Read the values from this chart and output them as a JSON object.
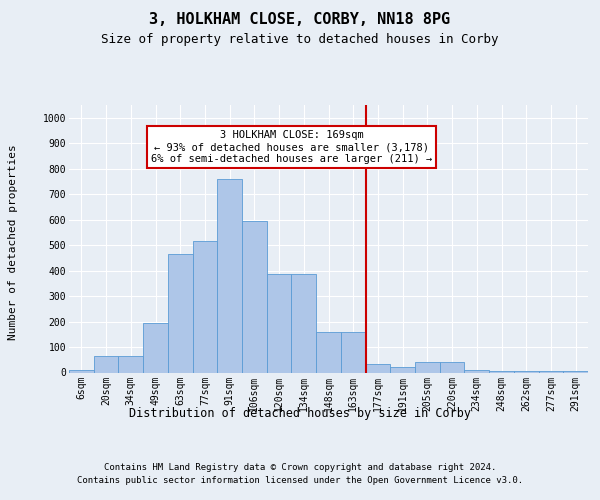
{
  "title": "3, HOLKHAM CLOSE, CORBY, NN18 8PG",
  "subtitle": "Size of property relative to detached houses in Corby",
  "xlabel": "Distribution of detached houses by size in Corby",
  "ylabel": "Number of detached properties",
  "footer_line1": "Contains HM Land Registry data © Crown copyright and database right 2024.",
  "footer_line2": "Contains public sector information licensed under the Open Government Licence v3.0.",
  "bin_labels": [
    "6sqm",
    "20sqm",
    "34sqm",
    "49sqm",
    "63sqm",
    "77sqm",
    "91sqm",
    "106sqm",
    "120sqm",
    "134sqm",
    "148sqm",
    "163sqm",
    "177sqm",
    "191sqm",
    "205sqm",
    "220sqm",
    "234sqm",
    "248sqm",
    "262sqm",
    "277sqm",
    "291sqm"
  ],
  "bar_values": [
    10,
    63,
    63,
    195,
    467,
    515,
    760,
    595,
    385,
    385,
    160,
    160,
    35,
    22,
    40,
    40,
    10,
    5,
    5,
    5,
    5
  ],
  "bar_color": "#aec6e8",
  "bar_edge_color": "#5a9bd5",
  "property_line_index": 11.5,
  "property_line_color": "#cc0000",
  "annotation_text": "3 HOLKHAM CLOSE: 169sqm\n← 93% of detached houses are smaller (3,178)\n6% of semi-detached houses are larger (211) →",
  "annotation_box_color": "#cc0000",
  "ylim": [
    0,
    1050
  ],
  "yticks": [
    0,
    100,
    200,
    300,
    400,
    500,
    600,
    700,
    800,
    900,
    1000
  ],
  "background_color": "#e8eef5",
  "plot_bg_color": "#e8eef5",
  "grid_color": "#ffffff",
  "title_fontsize": 11,
  "subtitle_fontsize": 9,
  "axis_label_fontsize": 8.5,
  "tick_fontsize": 7,
  "footer_fontsize": 6.5,
  "ylabel_fontsize": 8
}
